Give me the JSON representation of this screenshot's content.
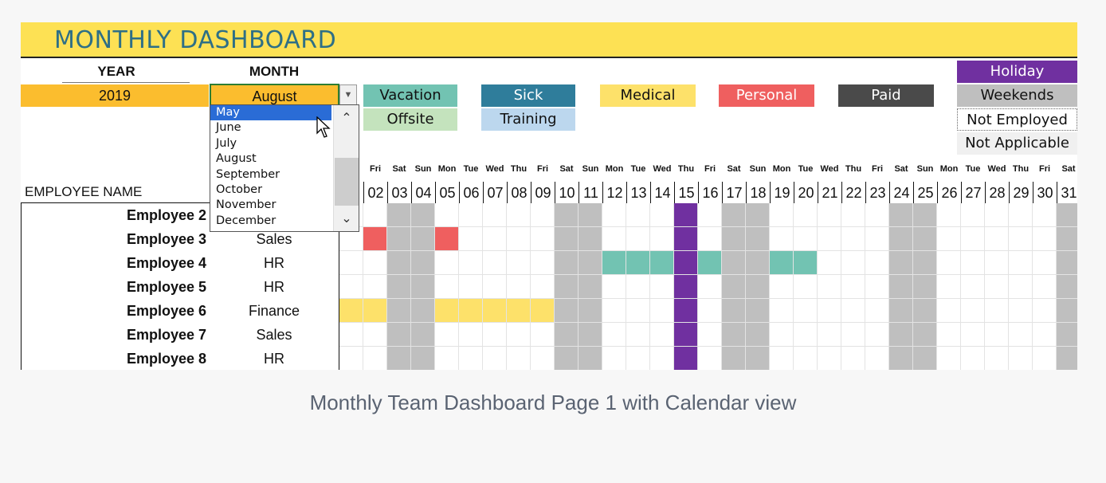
{
  "title": "MONTHLY DASHBOARD",
  "year_label": "YEAR",
  "month_label": "MONTH",
  "year_value": "2019",
  "month_value": "August",
  "month_options": [
    "May",
    "June",
    "July",
    "August",
    "September",
    "October",
    "November",
    "December"
  ],
  "highlighted_option": "May",
  "legend": [
    {
      "label": "Vacation",
      "color": "#72c3b2",
      "text": "#111111"
    },
    {
      "label": "Sick",
      "color": "#2f7d9b",
      "text": "#ffffff"
    },
    {
      "label": "Medical",
      "color": "#fde16a",
      "text": "#111111"
    },
    {
      "label": "Personal",
      "color": "#ef5f5f",
      "text": "#ffffff"
    },
    {
      "label": "Paid",
      "color": "#4a4a4a",
      "text": "#ffffff"
    },
    {
      "label": "Holiday",
      "color": "#7030a0",
      "text": "#ffffff"
    },
    {
      "label": "Offsite",
      "color": "#c4e3bd",
      "text": "#111111"
    },
    {
      "label": "Training",
      "color": "#bcd7ee",
      "text": "#111111"
    },
    {
      "label": "Weekends",
      "color": "#bfbfbf",
      "text": "#111111"
    },
    {
      "label": "Not Employed",
      "color": "#ffffff",
      "text": "#111111"
    },
    {
      "label": "Not Applicable",
      "color": "#f0f0f0",
      "text": "#111111"
    }
  ],
  "employee_header": "EMPLOYEE NAME",
  "days": [
    {
      "n": "02",
      "d": "Fri"
    },
    {
      "n": "03",
      "d": "Sat"
    },
    {
      "n": "04",
      "d": "Sun"
    },
    {
      "n": "05",
      "d": "Mon"
    },
    {
      "n": "06",
      "d": "Tue"
    },
    {
      "n": "07",
      "d": "Wed"
    },
    {
      "n": "08",
      "d": "Thu"
    },
    {
      "n": "09",
      "d": "Fri"
    },
    {
      "n": "10",
      "d": "Sat"
    },
    {
      "n": "11",
      "d": "Sun"
    },
    {
      "n": "12",
      "d": "Mon"
    },
    {
      "n": "13",
      "d": "Tue"
    },
    {
      "n": "14",
      "d": "Wed"
    },
    {
      "n": "15",
      "d": "Thu"
    },
    {
      "n": "16",
      "d": "Fri"
    },
    {
      "n": "17",
      "d": "Sat"
    },
    {
      "n": "18",
      "d": "Sun"
    },
    {
      "n": "19",
      "d": "Mon"
    },
    {
      "n": "20",
      "d": "Tue"
    },
    {
      "n": "21",
      "d": "Wed"
    },
    {
      "n": "22",
      "d": "Thu"
    },
    {
      "n": "23",
      "d": "Fri"
    },
    {
      "n": "24",
      "d": "Sat"
    },
    {
      "n": "25",
      "d": "Sun"
    },
    {
      "n": "26",
      "d": "Mon"
    },
    {
      "n": "27",
      "d": "Tue"
    },
    {
      "n": "28",
      "d": "Wed"
    },
    {
      "n": "29",
      "d": "Thu"
    },
    {
      "n": "30",
      "d": "Fri"
    },
    {
      "n": "31",
      "d": "Sat"
    }
  ],
  "employees": [
    {
      "name": "Employee 2",
      "dept": "",
      "leaves": {}
    },
    {
      "name": "Employee 3",
      "dept": "Sales",
      "leaves": {
        "02": "Personal",
        "05": "Personal"
      }
    },
    {
      "name": "Employee 4",
      "dept": "HR",
      "leaves": {
        "12": "Vacation",
        "13": "Vacation",
        "14": "Vacation",
        "16": "Vacation",
        "19": "Vacation",
        "20": "Vacation"
      }
    },
    {
      "name": "Employee 5",
      "dept": "HR",
      "leaves": {}
    },
    {
      "name": "Employee 6",
      "dept": "Finance",
      "leaves": {
        "01": "Medical",
        "02": "Medical",
        "05": "Medical",
        "06": "Medical",
        "07": "Medical",
        "08": "Medical",
        "09": "Medical"
      }
    },
    {
      "name": "Employee 7",
      "dept": "Sales",
      "leaves": {}
    },
    {
      "name": "Employee 8",
      "dept": "HR",
      "leaves": {}
    }
  ],
  "holiday_day": "15",
  "caption": "Monthly Team Dashboard Page 1 with Calendar view"
}
